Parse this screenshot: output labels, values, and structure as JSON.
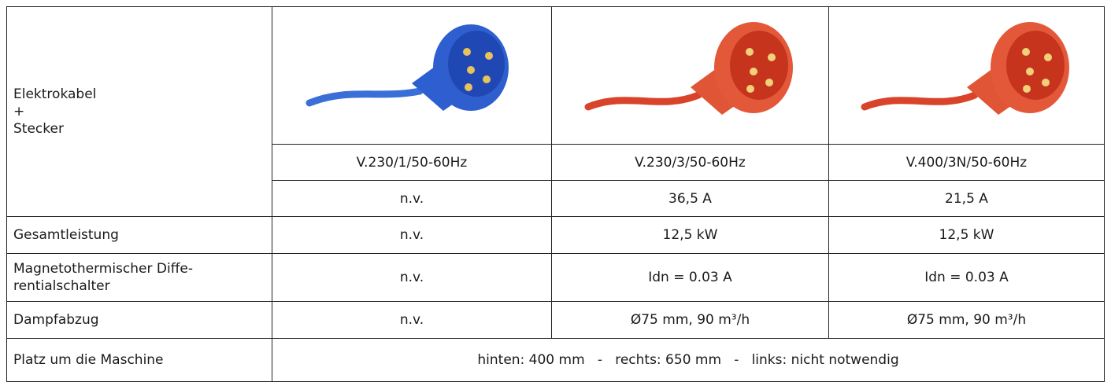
{
  "table": {
    "header_label": [
      "Elektrokabel",
      "+",
      "Stecker"
    ],
    "voltage": [
      "V.230/1/50-60Hz",
      "V.230/3/50-60Hz",
      "V.400/3N/50-60Hz"
    ],
    "current": [
      "n.v.",
      "36,5 A",
      "21,5 A"
    ],
    "rows": [
      {
        "label": [
          "Gesamtleistung"
        ],
        "cells": [
          "n.v.",
          "12,5 kW",
          "12,5 kW"
        ]
      },
      {
        "label": [
          "Magnetothermischer Diffe-",
          "rentialschalter"
        ],
        "cells": [
          "n.v.",
          "Idn = 0.03 A",
          "Idn = 0.03 A"
        ]
      },
      {
        "label": [
          "Dampfabzug"
        ],
        "cells": [
          "n.v.",
          "Ø75 mm, 90 m³/h",
          "Ø75 mm, 90 m³/h"
        ]
      }
    ],
    "footer": {
      "label": "Platz um die Maschine",
      "text": "hinten: 400 mm   -   rechts: 650 mm   -   links: nicht notwendig"
    }
  }
}
